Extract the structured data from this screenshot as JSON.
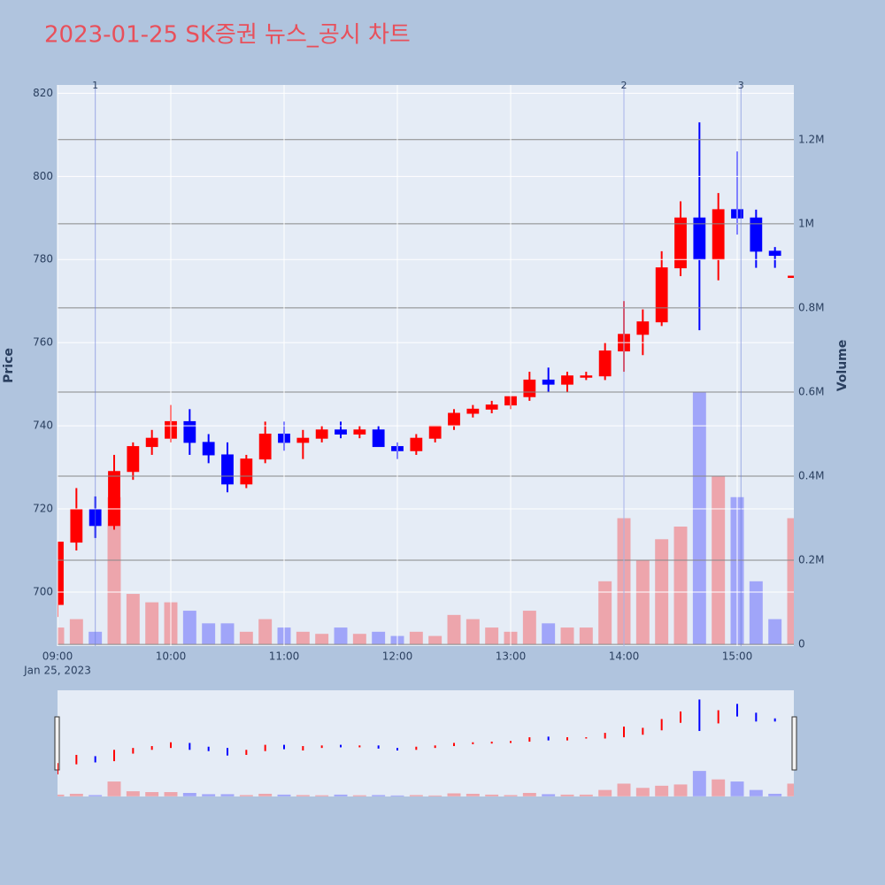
{
  "chart_data": {
    "type": "candlestick",
    "title": "2023-01-25 SK증권 뉴스_공시 차트",
    "y_title": "Price",
    "y2_title": "Volume",
    "x_date_label": "Jan 25, 2023",
    "x": [
      "09:00",
      "09:10",
      "09:20",
      "09:30",
      "09:40",
      "09:50",
      "10:00",
      "10:10",
      "10:20",
      "10:30",
      "10:40",
      "10:50",
      "11:00",
      "11:10",
      "11:20",
      "11:30",
      "11:40",
      "11:50",
      "12:00",
      "12:10",
      "12:20",
      "12:30",
      "12:40",
      "12:50",
      "13:00",
      "13:10",
      "13:20",
      "13:30",
      "13:40",
      "13:50",
      "14:00",
      "14:10",
      "14:20",
      "14:30",
      "14:40",
      "14:50",
      "15:00",
      "15:10",
      "15:20",
      "15:30"
    ],
    "open": [
      697,
      712,
      720,
      716,
      729,
      735,
      737,
      741,
      736,
      733,
      726,
      732,
      738,
      736,
      737,
      739,
      738,
      739,
      735,
      734,
      737,
      740,
      743,
      744,
      745,
      747,
      751,
      750,
      752,
      752,
      758,
      762,
      765,
      778,
      790,
      780,
      792,
      790,
      782,
      776
    ],
    "high": [
      712,
      725,
      723,
      733,
      736,
      739,
      745,
      744,
      738,
      736,
      733,
      741,
      741,
      739,
      740,
      741,
      740,
      740,
      736,
      738,
      740,
      744,
      745,
      746,
      747,
      753,
      754,
      753,
      753,
      760,
      770,
      768,
      782,
      794,
      813,
      796,
      806,
      792,
      783,
      776
    ],
    "low": [
      694,
      710,
      713,
      715,
      727,
      733,
      736,
      733,
      731,
      724,
      725,
      731,
      734,
      732,
      736,
      737,
      737,
      735,
      732,
      733,
      736,
      739,
      742,
      743,
      744,
      746,
      748,
      748,
      751,
      751,
      753,
      757,
      764,
      776,
      763,
      775,
      786,
      778,
      778,
      776
    ],
    "close": [
      712,
      720,
      716,
      729,
      735,
      737,
      741,
      736,
      733,
      726,
      732,
      738,
      736,
      737,
      739,
      738,
      739,
      735,
      734,
      737,
      740,
      743,
      744,
      745,
      747,
      751,
      750,
      752,
      752,
      758,
      762,
      765,
      778,
      790,
      780,
      792,
      790,
      782,
      781,
      776
    ],
    "volume": [
      40000,
      60000,
      30000,
      350000,
      120000,
      100000,
      100000,
      80000,
      50000,
      50000,
      30000,
      60000,
      40000,
      30000,
      25000,
      40000,
      25000,
      30000,
      20000,
      30000,
      20000,
      70000,
      60000,
      40000,
      30000,
      80000,
      50000,
      40000,
      40000,
      150000,
      300000,
      200000,
      250000,
      280000,
      600000,
      400000,
      350000,
      150000,
      60000,
      300000
    ],
    "increasing_color": "#ff0000",
    "decreasing_color": "#0000ff",
    "xlim": [
      "09:00",
      "15:30"
    ],
    "xticks": [
      "09:00",
      "10:00",
      "11:00",
      "12:00",
      "13:00",
      "14:00",
      "15:00"
    ],
    "ylim": [
      687,
      822
    ],
    "yticks": [
      700,
      720,
      740,
      760,
      780,
      800,
      820
    ],
    "y2lim": [
      -4000,
      1330000
    ],
    "y2ticks": [
      0,
      {
        "value": 200000,
        "label": "0.2M"
      },
      {
        "value": 400000,
        "label": "0.4M"
      },
      {
        "value": 600000,
        "label": "0.6M"
      },
      {
        "value": 800000,
        "label": "0.8M"
      },
      {
        "value": 1000000,
        "label": "1M"
      },
      {
        "value": 1200000,
        "label": "1.2M"
      }
    ],
    "annotations": [
      {
        "x": "09:20",
        "text": "1"
      },
      {
        "x": "14:00",
        "text": "2"
      },
      {
        "x": "15:02",
        "text": "3"
      }
    ],
    "grid": true,
    "rangeslider": true
  }
}
